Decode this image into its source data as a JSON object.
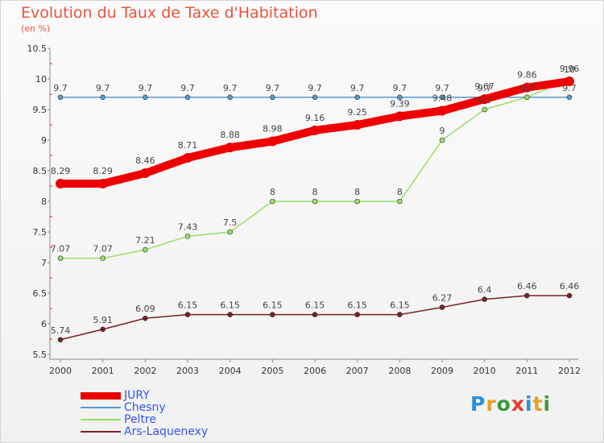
{
  "title": "Evolution du Taux de Taxe d'Habitation",
  "unit": "(en %)",
  "logo": {
    "text": "Proxiti",
    "colors": [
      "#2a8fd8",
      "#e6a02a",
      "#3a9a3a",
      "#e63a2a",
      "#2a8fd8",
      "#e6a02a",
      "#3a9a3a"
    ]
  },
  "chart_data": {
    "type": "line",
    "x": [
      2000,
      2001,
      2002,
      2003,
      2004,
      2005,
      2006,
      2007,
      2008,
      2009,
      2010,
      2011,
      2012
    ],
    "ylim": [
      5.5,
      10.5
    ],
    "yticks": [
      5.5,
      6,
      6.5,
      7,
      7.5,
      8,
      8.5,
      9,
      9.5,
      10,
      10.5
    ],
    "grid": false,
    "legend_position": "bottom-left",
    "series": [
      {
        "name": "JURY",
        "color": "#ee0000",
        "values": [
          8.29,
          8.29,
          8.46,
          8.71,
          8.88,
          8.98,
          9.16,
          9.25,
          9.39,
          9.48,
          9.67,
          9.86,
          9.96
        ]
      },
      {
        "name": "Chesny",
        "color": "#5599cc",
        "values": [
          9.7,
          9.7,
          9.7,
          9.7,
          9.7,
          9.7,
          9.7,
          9.7,
          9.7,
          9.7,
          9.7,
          9.7,
          9.7
        ]
      },
      {
        "name": "Peltre",
        "color": "#99dd66",
        "values": [
          7.07,
          7.07,
          7.21,
          7.43,
          7.5,
          8,
          8,
          8,
          8,
          9,
          9.5,
          9.7,
          10
        ]
      },
      {
        "name": "Ars-Laquenexy",
        "color": "#772222",
        "values": [
          5.74,
          5.91,
          6.09,
          6.15,
          6.15,
          6.15,
          6.15,
          6.15,
          6.15,
          6.27,
          6.4,
          6.46,
          6.46
        ]
      }
    ]
  }
}
